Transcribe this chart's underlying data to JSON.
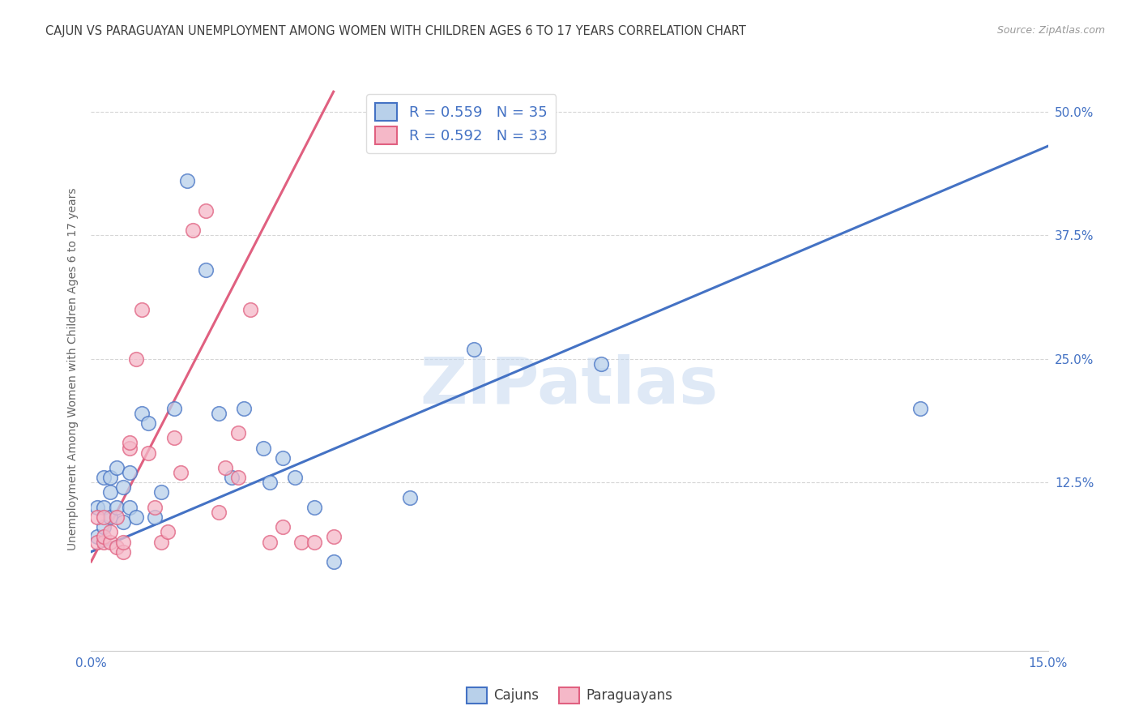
{
  "title": "CAJUN VS PARAGUAYAN UNEMPLOYMENT AMONG WOMEN WITH CHILDREN AGES 6 TO 17 YEARS CORRELATION CHART",
  "source": "Source: ZipAtlas.com",
  "ylabel": "Unemployment Among Women with Children Ages 6 to 17 years",
  "x_min": 0.0,
  "x_max": 0.15,
  "y_min": -0.045,
  "y_max": 0.525,
  "y_ticks": [
    0.125,
    0.25,
    0.375,
    0.5
  ],
  "y_tick_labels": [
    "12.5%",
    "25.0%",
    "37.5%",
    "50.0%"
  ],
  "x_tick_positions": [
    0.0,
    0.05,
    0.1,
    0.15
  ],
  "watermark_text": "ZIPatlas",
  "cajun_fill": "#b8d0ea",
  "cajun_edge": "#4472c4",
  "para_fill": "#f5b8c8",
  "para_edge": "#e06080",
  "cajun_line_color": "#4472c4",
  "para_line_color": "#e06080",
  "cajun_R": "0.559",
  "cajun_N": "35",
  "para_R": "0.592",
  "para_N": "33",
  "background_color": "#ffffff",
  "grid_color": "#cccccc",
  "title_color": "#404040",
  "ylabel_color": "#666666",
  "tick_color": "#4472c4",
  "legend_label_cajun": "Cajuns",
  "legend_label_para": "Paraguayans",
  "cajun_scatter_x": [
    0.001,
    0.001,
    0.002,
    0.002,
    0.002,
    0.003,
    0.003,
    0.003,
    0.004,
    0.004,
    0.005,
    0.005,
    0.006,
    0.006,
    0.007,
    0.008,
    0.009,
    0.01,
    0.011,
    0.013,
    0.015,
    0.018,
    0.02,
    0.022,
    0.024,
    0.027,
    0.028,
    0.03,
    0.032,
    0.035,
    0.038,
    0.05,
    0.06,
    0.08,
    0.13
  ],
  "cajun_scatter_y": [
    0.07,
    0.1,
    0.08,
    0.1,
    0.13,
    0.09,
    0.115,
    0.13,
    0.1,
    0.14,
    0.085,
    0.12,
    0.1,
    0.135,
    0.09,
    0.195,
    0.185,
    0.09,
    0.115,
    0.2,
    0.43,
    0.34,
    0.195,
    0.13,
    0.2,
    0.16,
    0.125,
    0.15,
    0.13,
    0.1,
    0.045,
    0.11,
    0.26,
    0.245,
    0.2
  ],
  "para_scatter_x": [
    0.001,
    0.001,
    0.002,
    0.002,
    0.002,
    0.003,
    0.003,
    0.004,
    0.004,
    0.005,
    0.005,
    0.006,
    0.006,
    0.007,
    0.008,
    0.009,
    0.01,
    0.011,
    0.012,
    0.013,
    0.014,
    0.016,
    0.018,
    0.02,
    0.021,
    0.023,
    0.023,
    0.025,
    0.028,
    0.03,
    0.033,
    0.035,
    0.038
  ],
  "para_scatter_y": [
    0.065,
    0.09,
    0.065,
    0.07,
    0.09,
    0.065,
    0.075,
    0.06,
    0.09,
    0.055,
    0.065,
    0.16,
    0.165,
    0.25,
    0.3,
    0.155,
    0.1,
    0.065,
    0.075,
    0.17,
    0.135,
    0.38,
    0.4,
    0.095,
    0.14,
    0.13,
    0.175,
    0.3,
    0.065,
    0.08,
    0.065,
    0.065,
    0.07
  ],
  "cajun_line_x0": 0.0,
  "cajun_line_y0": 0.055,
  "cajun_line_x1": 0.15,
  "cajun_line_y1": 0.465,
  "para_line_x0": 0.0,
  "para_line_y0": 0.045,
  "para_line_x1": 0.038,
  "para_line_y1": 0.52
}
